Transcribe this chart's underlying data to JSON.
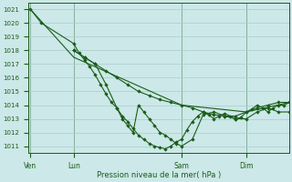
{
  "bg_color": "#cce8e8",
  "grid_color": "#aacccc",
  "line_color": "#1a5c1a",
  "xlabel": "Pression niveau de la mer( hPa )",
  "ylim": [
    1010.5,
    1021.5
  ],
  "yticks": [
    1011,
    1012,
    1013,
    1014,
    1015,
    1016,
    1017,
    1018,
    1019,
    1020,
    1021
  ],
  "xtick_labels": [
    "Ven",
    "Lun",
    "Sam",
    "Dim"
  ],
  "xtick_positions": [
    0,
    16,
    56,
    80
  ],
  "xlim": [
    -1,
    96
  ],
  "vlines": [
    0,
    16,
    56,
    80
  ],
  "line1": {
    "x": [
      0,
      4,
      16,
      18,
      20,
      22,
      24,
      26,
      28,
      30,
      32,
      34,
      36,
      38,
      40,
      42,
      44,
      46,
      48,
      50,
      52,
      54,
      56,
      58,
      60,
      62,
      64,
      66,
      68,
      70,
      72,
      74,
      76,
      78,
      80,
      82,
      84,
      86,
      88,
      90,
      92,
      94,
      96
    ],
    "y": [
      1021,
      1020,
      1018.5,
      1017.8,
      1017.3,
      1016.8,
      1016.2,
      1015.5,
      1014.8,
      1014.2,
      1013.8,
      1013.2,
      1012.8,
      1012.3,
      1011.8,
      1011.5,
      1011.2,
      1011.0,
      1010.9,
      1010.8,
      1011.0,
      1011.3,
      1011.5,
      1012.2,
      1012.8,
      1013.2,
      1013.5,
      1013.3,
      1013.0,
      1013.2,
      1013.4,
      1013.2,
      1013.0,
      1013.1,
      1013.5,
      1013.7,
      1014.0,
      1013.8,
      1013.5,
      1013.8,
      1014.0,
      1014.0,
      1014.2
    ]
  },
  "line2": {
    "x": [
      16,
      20,
      24,
      28,
      32,
      36,
      40,
      44,
      48,
      52,
      56,
      60,
      64,
      68,
      72,
      76,
      80,
      84,
      88,
      92,
      96
    ],
    "y": [
      1018.0,
      1017.5,
      1017.0,
      1016.5,
      1016.0,
      1015.5,
      1015.0,
      1014.7,
      1014.4,
      1014.2,
      1014.0,
      1013.8,
      1013.5,
      1013.3,
      1013.2,
      1013.2,
      1013.5,
      1013.8,
      1014.0,
      1014.2,
      1014.2
    ]
  },
  "line3": {
    "x": [
      16,
      20,
      24,
      28,
      32,
      34,
      36,
      38,
      40,
      42,
      44,
      46,
      48,
      50,
      52,
      54,
      56,
      60,
      64,
      68,
      72,
      76,
      80,
      84,
      88,
      92,
      96
    ],
    "y": [
      1018.0,
      1017.5,
      1017.0,
      1015.5,
      1013.8,
      1013.0,
      1012.5,
      1012.0,
      1014.0,
      1013.5,
      1013.0,
      1012.5,
      1012.0,
      1011.8,
      1011.5,
      1011.2,
      1011.0,
      1011.5,
      1013.3,
      1013.5,
      1013.2,
      1013.0,
      1013.0,
      1013.5,
      1013.8,
      1013.5,
      1013.5
    ]
  },
  "line4": {
    "x": [
      0,
      16,
      56,
      80,
      96
    ],
    "y": [
      1021,
      1017.5,
      1014.0,
      1013.5,
      1014.2
    ]
  },
  "marker": "D",
  "marker_size": 2.2,
  "line_width": 0.8
}
